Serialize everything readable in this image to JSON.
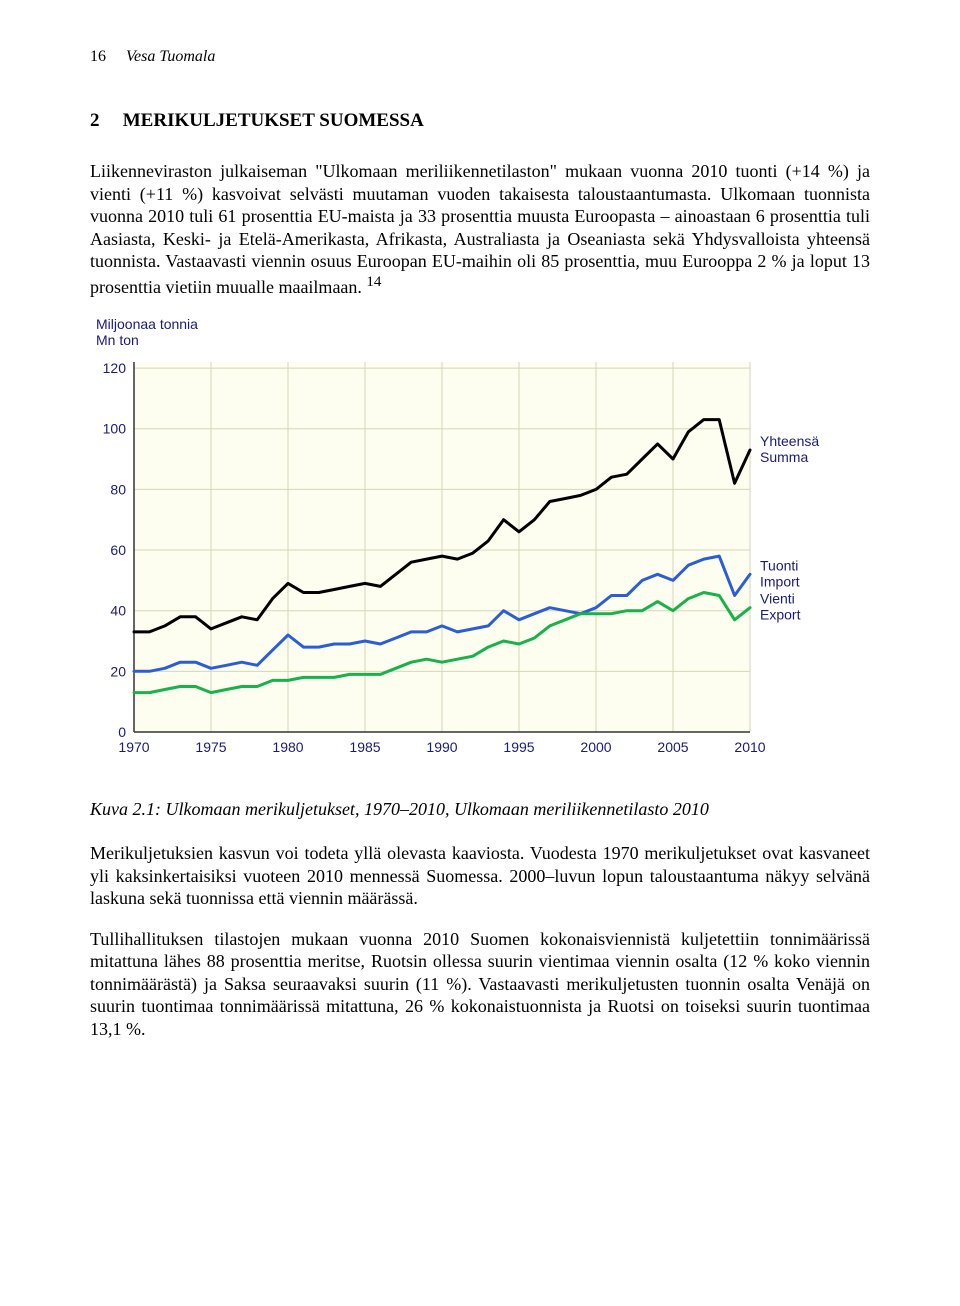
{
  "header": {
    "page_number": "16",
    "author": "Vesa Tuomala"
  },
  "section": {
    "number": "2",
    "title": "MERIKULJETUKSET SUOMESSA"
  },
  "paragraphs": {
    "p1": "Liikenneviraston julkaiseman \"Ulkomaan meriliikennetilaston\" mukaan vuonna 2010 tuonti (+14 %) ja vienti (+11 %) kasvoivat selvästi muutaman vuoden takaisesta taloustaantumasta. Ulkomaan tuonnista vuonna 2010 tuli 61 prosenttia EU-maista ja 33 prosenttia muusta Euroopasta – ainoastaan 6 prosenttia tuli Aasiasta, Keski- ja Etelä-Amerikasta, Afrikasta, Australiasta ja Oseaniasta sekä Yhdysvalloista yhteensä tuonnista. Vastaavasti viennin osuus Euroopan EU-maihin oli 85 prosenttia, muu Eurooppa 2 % ja loput 13 prosenttia vietiin muualle maailmaan.",
    "p1_footnote": "14",
    "caption": "Kuva 2.1: Ulkomaan merikuljetukset, 1970–2010, Ulkomaan meriliikennetilasto 2010",
    "p2": "Merikuljetuksien kasvun voi todeta yllä olevasta kaaviosta. Vuodesta 1970 merikuljetukset ovat kasvaneet yli kaksinkertaisiksi vuoteen 2010 mennessä Suomessa. 2000–luvun lopun taloustaantuma näkyy selvänä laskuna sekä tuonnissa että viennin määrässä.",
    "p3": "Tullihallituksen tilastojen mukaan vuonna 2010 Suomen kokonaisviennistä kuljetettiin tonnimäärissä mitattuna lähes 88 prosenttia meritse, Ruotsin ollessa suurin vientimaa viennin osalta (12 % koko viennin tonnimäärästä) ja Saksa seuraavaksi suurin (11 %). Vastaavasti merikuljetusten tuonnin osalta Venäjä on suurin tuontimaa tonnimäärissä mitattuna, 26 % kokonaistuonnista ja Ruotsi on toiseksi suurin tuontimaa 13,1 %."
  },
  "chart": {
    "type": "line",
    "y_axis_title_line1": "Miljoonaa tonnia",
    "y_axis_title_line2": "Mn ton",
    "background_color": "#fdfdf0",
    "grid_color": "#d6d6b8",
    "axis_color": "#333333",
    "tick_font_color": "#1a1a7a",
    "label_font_color": "#1a1a7a",
    "tick_fontsize": 14,
    "label_fontsize": 14,
    "x": [
      1970,
      1971,
      1972,
      1973,
      1974,
      1975,
      1976,
      1977,
      1978,
      1979,
      1980,
      1981,
      1982,
      1983,
      1984,
      1985,
      1986,
      1987,
      1988,
      1989,
      1990,
      1991,
      1992,
      1993,
      1994,
      1995,
      1996,
      1997,
      1998,
      1999,
      2000,
      2001,
      2002,
      2003,
      2004,
      2005,
      2006,
      2007,
      2008,
      2009,
      2010
    ],
    "x_ticks": [
      1970,
      1975,
      1980,
      1985,
      1990,
      1995,
      2000,
      2005,
      2010
    ],
    "y_ticks": [
      0,
      20,
      40,
      60,
      80,
      100,
      120
    ],
    "ylim": [
      0,
      122
    ],
    "xlim": [
      1970,
      2010
    ],
    "line_width": 3,
    "series": [
      {
        "name": "yhteensa",
        "label_line1": "Yhteensä",
        "label_line2": "Summa",
        "color": "#000000",
        "values": [
          33,
          33,
          35,
          38,
          38,
          34,
          36,
          38,
          37,
          44,
          49,
          46,
          46,
          47,
          48,
          49,
          48,
          52,
          56,
          57,
          58,
          57,
          59,
          63,
          70,
          66,
          70,
          76,
          77,
          78,
          80,
          84,
          85,
          90,
          95,
          90,
          99,
          103,
          103,
          82,
          93
        ]
      },
      {
        "name": "tuonti",
        "label_line1": "Tuonti",
        "label_line2": "Import",
        "color": "#2b5ed6",
        "values": [
          20,
          20,
          21,
          23,
          23,
          21,
          22,
          23,
          22,
          27,
          32,
          28,
          28,
          29,
          29,
          30,
          29,
          31,
          33,
          33,
          35,
          33,
          34,
          35,
          40,
          37,
          39,
          41,
          40,
          39,
          41,
          45,
          45,
          50,
          52,
          50,
          55,
          57,
          58,
          45,
          52
        ]
      },
      {
        "name": "vienti",
        "label_line1": "Vienti",
        "label_line2": "Export",
        "color": "#18b24a",
        "values": [
          13,
          13,
          14,
          15,
          15,
          13,
          14,
          15,
          15,
          17,
          17,
          18,
          18,
          18,
          19,
          19,
          19,
          21,
          23,
          24,
          23,
          24,
          25,
          28,
          30,
          29,
          31,
          35,
          37,
          39,
          39,
          39,
          40,
          40,
          43,
          40,
          44,
          46,
          45,
          37,
          41
        ]
      }
    ]
  }
}
